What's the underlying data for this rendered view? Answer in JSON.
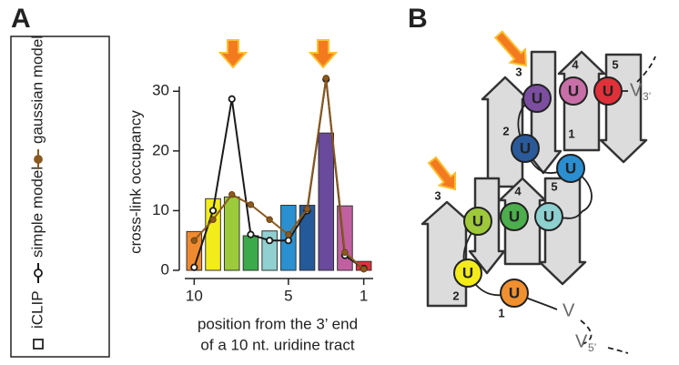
{
  "panel_a": "A",
  "panel_b": "B",
  "chart_data": {
    "type": "bar",
    "ylabel": "cross-link occupancy",
    "xlabel": [
      "position from the 3’ end",
      "of a 10 nt. uridine tract"
    ],
    "x": [
      10,
      9,
      8,
      7,
      6,
      5,
      4,
      3,
      2,
      1
    ],
    "xlim": [
      10.5,
      0.5
    ],
    "xticks": [
      10,
      5,
      1
    ],
    "ylim": [
      0,
      30.8
    ],
    "yticks": [
      0,
      10,
      20,
      30
    ],
    "series": [
      {
        "name": "iCLIP",
        "mark": "bar",
        "color": "#444444",
        "values": [
          6.5,
          12,
          12.3,
          5.8,
          6.6,
          10.9,
          10.9,
          23,
          10.8,
          1.5
        ],
        "colors": [
          "#f08a30",
          "#f2ec1a",
          "#9bcb3b",
          "#3aaa4a",
          "#90d0d0",
          "#2a90d0",
          "#245a9a",
          "#6a4a9c",
          "#c060a0",
          "#e0303a"
        ]
      },
      {
        "name": "simple model",
        "mark": "line-open",
        "color": "#1a1a1a",
        "values": [
          0.5,
          10,
          28.7,
          6,
          5,
          5,
          10,
          32,
          2.5,
          0.3
        ]
      },
      {
        "name": "gaussian model",
        "mark": "line-filled",
        "color": "#8a5a20",
        "values": [
          5,
          8.5,
          12.7,
          11,
          8.5,
          6,
          10.3,
          32.2,
          3,
          0.2
        ]
      }
    ]
  },
  "diagram": {
    "strand_numbers": [
      "3",
      "4",
      "5",
      "2",
      "1",
      "3",
      "4",
      "5",
      "2",
      "1"
    ],
    "uridines": [
      "U",
      "U",
      "U",
      "U",
      "U",
      "U",
      "U",
      "U",
      "U",
      "U"
    ],
    "ends": [
      {
        "main": "V",
        "sub": "3’"
      },
      {
        "main": "V",
        "sub": ""
      },
      {
        "main": "V",
        "sub": "5’"
      }
    ]
  }
}
